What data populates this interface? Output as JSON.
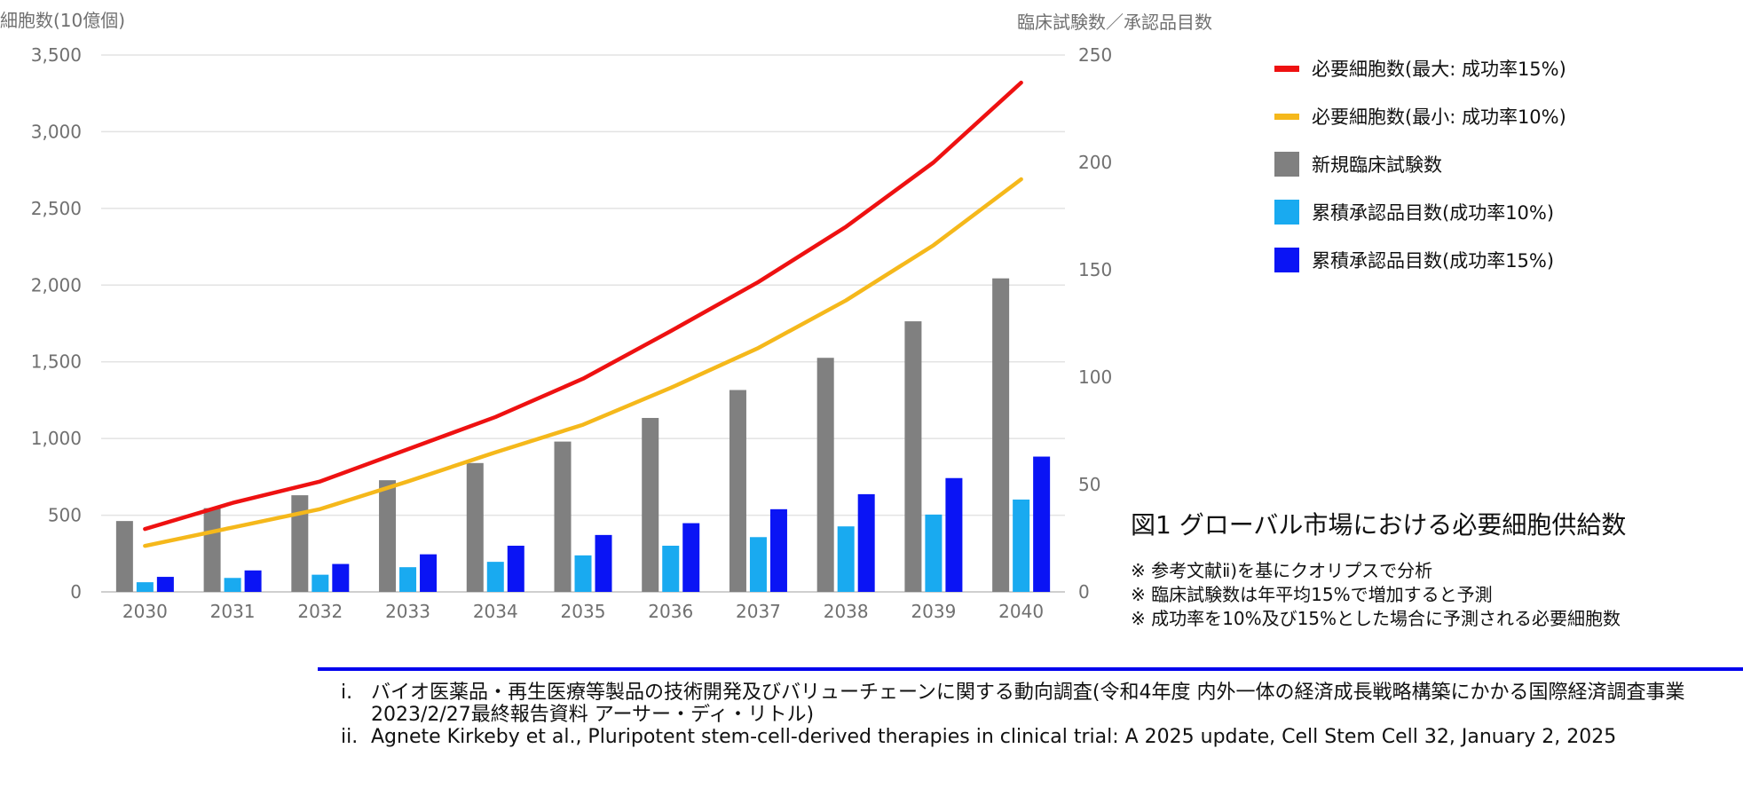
{
  "chart_data": {
    "type": "bar",
    "left_axis_title": "細胞数(10億個)",
    "right_axis_title": "臨床試験数／承認品目数",
    "categories": [
      "2030",
      "2031",
      "2032",
      "2033",
      "2034",
      "2035",
      "2036",
      "2037",
      "2038",
      "2039",
      "2040"
    ],
    "left_ylim": [
      0,
      3500
    ],
    "left_ticks": [
      "0",
      "500",
      "1,000",
      "1,500",
      "2,000",
      "2,500",
      "3,000",
      "3,500"
    ],
    "right_ylim": [
      0,
      250
    ],
    "right_ticks": [
      "0",
      "50",
      "100",
      "150",
      "200",
      "250"
    ],
    "grid": true,
    "legend_position": "right",
    "series": [
      {
        "name": "必要細胞数(最大: 成功率15%)",
        "type": "line",
        "axis": "left",
        "color": "#ee1111",
        "values": [
          410,
          580,
          720,
          930,
          1140,
          1390,
          1700,
          2020,
          2380,
          2800,
          3320
        ]
      },
      {
        "name": "必要細胞数(最小: 成功率10%)",
        "type": "line",
        "axis": "left",
        "color": "#f5b81b",
        "values": [
          300,
          420,
          540,
          720,
          910,
          1090,
          1330,
          1590,
          1900,
          2260,
          2690
        ]
      },
      {
        "name": "新規臨床試験数",
        "type": "bar",
        "axis": "right",
        "color": "#808080",
        "values": [
          33,
          39,
          45,
          52,
          60,
          70,
          81,
          94,
          109,
          126,
          146
        ]
      },
      {
        "name": "累積承認品目数(成功率10%)",
        "type": "bar",
        "axis": "right",
        "color": "#19aaf0",
        "values": [
          4.5,
          6.5,
          8,
          11.5,
          14,
          17,
          21.5,
          25.5,
          30.5,
          36,
          43
        ]
      },
      {
        "name": "累積承認品目数(成功率15%)",
        "type": "bar",
        "axis": "right",
        "color": "#0a14f5",
        "values": [
          7,
          10,
          13,
          17.5,
          21.5,
          26.5,
          32,
          38.5,
          45.5,
          53,
          63
        ]
      }
    ]
  },
  "figure": {
    "title": "図1 グローバル市場における必要細胞供給数",
    "notes": [
      "※ 参考文献ⅱ)を基にクオリプスで分析",
      "※ 臨床試験数は年平均15%で増加すると予測",
      "※ 成功率を10%及び15%とした場合に予測される必要細胞数"
    ]
  },
  "references": [
    {
      "num": "i.",
      "text": "バイオ医薬品・再生医療等製品の技術開発及びバリューチェーンに関する動向調査(令和4年度 内外一体の経済成長戦略構築にかかる国際経済調査事業 2023/2/27最終報告資料 アーサー・ディ・リトル)"
    },
    {
      "num": "ii.",
      "text": "Agnete Kirkeby et al., Pluripotent stem-cell-derived therapies in clinical trial: A 2025 update, Cell Stem Cell 32, January 2, 2025"
    }
  ]
}
